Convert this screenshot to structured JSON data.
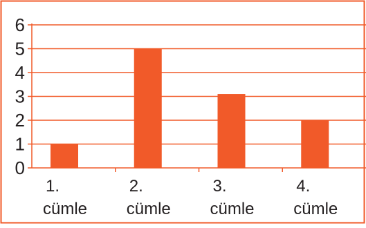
{
  "chart_data": {
    "type": "bar",
    "categories": [
      [
        "1.",
        "cümle"
      ],
      [
        "2.",
        "cümle"
      ],
      [
        "3.",
        "cümle"
      ],
      [
        "4.",
        "cümle"
      ]
    ],
    "values": [
      1,
      5,
      3.1,
      2
    ],
    "ylim": [
      0,
      6
    ],
    "y_ticks": [
      "0",
      "1",
      "2",
      "3",
      "4",
      "5",
      "6"
    ],
    "grid": true,
    "legend": "none",
    "colors": {
      "bar": "#f15a29",
      "grid": "#f15a29",
      "frame": "#f15a29",
      "axis": "#f15a29",
      "text": "#231f20"
    }
  }
}
